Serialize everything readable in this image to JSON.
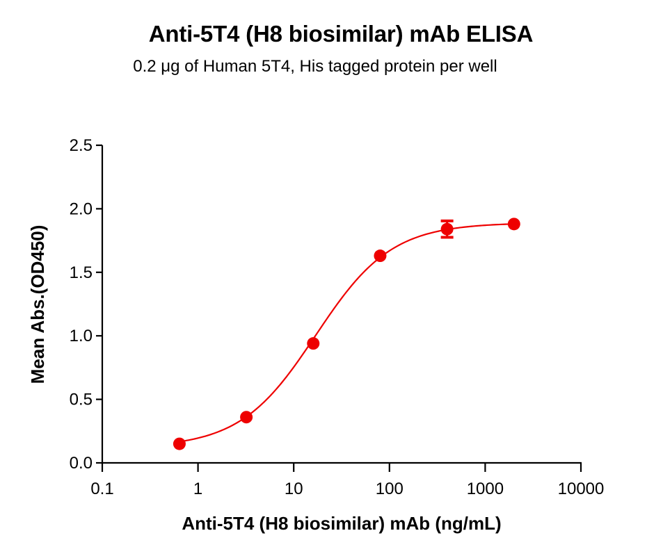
{
  "header": {
    "title": "Anti-5T4 (H8 biosimilar) mAb ELISA",
    "subtitle": "0.2 μg of Human 5T4, His tagged protein per well"
  },
  "colors": {
    "series": "#ee0000",
    "axis": "#000000"
  },
  "chart_data": {
    "type": "scatter",
    "title": "Anti-5T4 (H8 biosimilar) mAb ELISA",
    "subtitle": "0.2 μg of Human 5T4, His tagged protein per well",
    "xlabel": "Anti-5T4 (H8 biosimilar) mAb (ng/mL)",
    "ylabel": "Mean Abs.(OD450)",
    "xscale": "log",
    "xlim": [
      0.1,
      10000
    ],
    "ylim": [
      0.0,
      2.5
    ],
    "xticks": [
      "0.1",
      "1",
      "10",
      "100",
      "1000",
      "10000"
    ],
    "yticks": [
      "0.0",
      "0.5",
      "1.0",
      "1.5",
      "2.0",
      "2.5"
    ],
    "grid": false,
    "legend": null,
    "series": [
      {
        "name": "Anti-5T4 (H8 biosimilar) mAb",
        "color": "#ee0000",
        "x": [
          0.64,
          3.2,
          16,
          80,
          400,
          2000
        ],
        "y": [
          0.15,
          0.36,
          0.94,
          1.63,
          1.84,
          1.88
        ],
        "error": [
          0.01,
          0.01,
          0.01,
          0.01,
          0.07,
          0.01
        ],
        "fit": {
          "model": "4PL",
          "bottom": 0.12,
          "top": 1.89,
          "ec50": 17,
          "hill": 1.1,
          "x_range": [
            0.6,
            2000
          ]
        }
      }
    ]
  }
}
